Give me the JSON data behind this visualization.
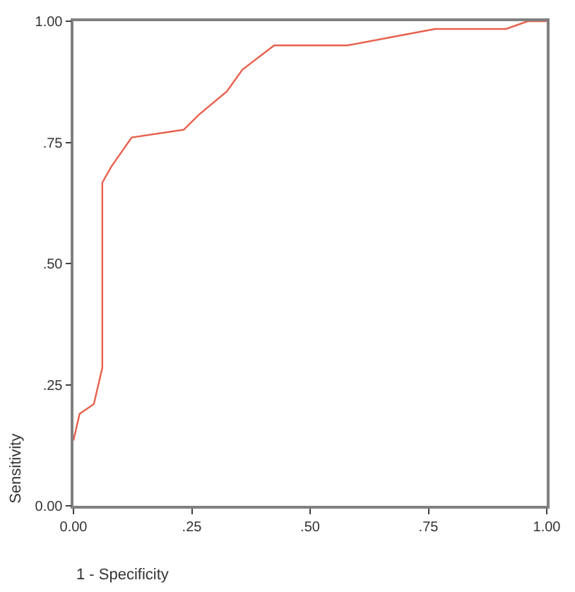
{
  "chart_data": {
    "type": "line",
    "xlabel": "1 - Specificity",
    "ylabel": "Sensitivity",
    "x": [
      0,
      0.013,
      0.043,
      0.061,
      0.061,
      0.08,
      0.123,
      0.233,
      0.265,
      0.324,
      0.357,
      0.424,
      0.579,
      0.764,
      0.914,
      0.96,
      1.0
    ],
    "series": [
      {
        "color": "#e8604c",
        "values": [
          0.135,
          0.19,
          0.21,
          0.285,
          0.667,
          0.7,
          0.76,
          0.776,
          0.807,
          0.855,
          0.9,
          0.95,
          0.95,
          0.984,
          0.984,
          1.0,
          1.0
        ]
      }
    ],
    "xlim": [
      0,
      1
    ],
    "ylim": [
      0,
      1
    ],
    "xticks": [
      {
        "value": 0,
        "label": "0.00"
      },
      {
        "value": 0.25,
        "label": ".25"
      },
      {
        "value": 0.5,
        "label": ".50"
      },
      {
        "value": 0.75,
        "label": ".75"
      },
      {
        "value": 1,
        "label": "1.00"
      }
    ],
    "yticks": [
      {
        "value": 0,
        "label": "0.00"
      },
      {
        "value": 0.25,
        "label": ".25"
      },
      {
        "value": 0.5,
        "label": ".50"
      },
      {
        "value": 0.75,
        "label": ".75"
      },
      {
        "value": 1,
        "label": "1.00"
      }
    ],
    "marker": "none",
    "line_style": "solid"
  }
}
